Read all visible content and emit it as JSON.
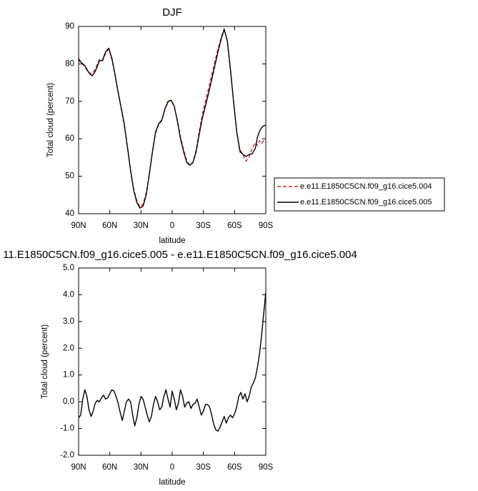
{
  "chart_data": [
    {
      "type": "line",
      "title": "DJF",
      "xlabel": "latitude",
      "ylabel": "Total cloud (percent)",
      "x_tick_labels": [
        "90N",
        "60N",
        "30N",
        "0",
        "30S",
        "60S",
        "90S"
      ],
      "x_tick_values": [
        90,
        60,
        30,
        0,
        -30,
        -60,
        -90
      ],
      "xlim": [
        90,
        -90
      ],
      "ylim": [
        40,
        90
      ],
      "y_ticks": [
        "40",
        "50",
        "60",
        "70",
        "80",
        "90"
      ],
      "legend_position": "right",
      "series": [
        {
          "name": "e.e11.E1850C5CN.f09_g16.cice5.004",
          "color": "#e31a1c",
          "style": "dashed",
          "x": [
            90,
            87,
            84,
            80,
            77,
            74,
            70,
            67,
            64,
            61,
            58,
            55,
            52,
            49,
            46,
            43,
            40,
            37,
            34,
            31,
            28,
            25,
            22,
            19,
            16,
            13,
            10,
            7,
            4,
            1,
            -2,
            -5,
            -8,
            -11,
            -14,
            -17,
            -20,
            -23,
            -26,
            -29,
            -32,
            -35,
            -38,
            -41,
            -44,
            -47,
            -50,
            -53,
            -56,
            -59,
            -62,
            -65,
            -68,
            -71,
            -74,
            -77,
            -80,
            -82,
            -84,
            -86,
            -88,
            -90
          ],
          "y": [
            81.5,
            80.2,
            79.2,
            77.6,
            77.4,
            78.6,
            81.2,
            80.8,
            82.8,
            84.0,
            81.2,
            77.0,
            72.5,
            68.0,
            63.5,
            57.5,
            51.5,
            46.5,
            43.5,
            41.8,
            42.6,
            45.5,
            50.5,
            56.5,
            61.5,
            63.8,
            64.8,
            67.8,
            69.8,
            70.4,
            68.5,
            65.0,
            60.5,
            57.0,
            54.2,
            52.9,
            53.8,
            57.0,
            62.0,
            66.5,
            70.0,
            73.5,
            77.0,
            80.5,
            84.0,
            87.0,
            89.4,
            86.0,
            78.5,
            70.0,
            62.0,
            56.5,
            55.8,
            54.0,
            55.2,
            57.5,
            59.0,
            58.2,
            59.5,
            58.8,
            59.5,
            59.0
          ]
        },
        {
          "name": "e.e11.E1850C5CN.f09_g16.cice5.005",
          "color": "#000000",
          "style": "solid",
          "x": [
            90,
            87,
            84,
            80,
            77,
            74,
            70,
            67,
            64,
            61,
            58,
            55,
            52,
            49,
            46,
            43,
            40,
            37,
            34,
            31,
            28,
            25,
            22,
            19,
            16,
            13,
            10,
            7,
            4,
            1,
            -2,
            -5,
            -8,
            -11,
            -14,
            -17,
            -20,
            -23,
            -26,
            -29,
            -32,
            -35,
            -38,
            -41,
            -44,
            -47,
            -50,
            -53,
            -56,
            -59,
            -62,
            -65,
            -68,
            -71,
            -74,
            -77,
            -80,
            -82,
            -84,
            -86,
            -88,
            -90
          ],
          "y": [
            81.0,
            80.3,
            79.5,
            77.6,
            76.8,
            78.0,
            80.8,
            81.0,
            83.2,
            84.2,
            81.5,
            77.2,
            72.5,
            68.2,
            63.8,
            57.8,
            51.5,
            46.2,
            43.0,
            41.5,
            42.0,
            45.0,
            50.5,
            56.5,
            61.8,
            64.0,
            65.0,
            68.0,
            70.0,
            70.3,
            68.7,
            64.7,
            60.0,
            56.5,
            53.7,
            52.9,
            53.7,
            56.5,
            61.2,
            65.5,
            68.8,
            72.2,
            75.8,
            79.5,
            83.2,
            86.5,
            89.2,
            86.2,
            78.5,
            70.0,
            62.0,
            57.0,
            55.8,
            55.3,
            55.8,
            56.0,
            57.5,
            60.5,
            62.0,
            63.0,
            63.5,
            63.6
          ]
        }
      ]
    },
    {
      "type": "line",
      "title": "11.E1850C5CN.f09_g16.cice5.005 - e.e11.E1850C5CN.f09_g16.cice5.004",
      "xlabel": "latitude",
      "ylabel": "Total cloud (percent)",
      "x_tick_labels": [
        "90N",
        "60N",
        "30N",
        "0",
        "30S",
        "60S",
        "90S"
      ],
      "x_tick_values": [
        90,
        60,
        30,
        0,
        -30,
        -60,
        -90
      ],
      "xlim": [
        90,
        -90
      ],
      "ylim": [
        -2.0,
        5.0
      ],
      "y_ticks": [
        "-2.0",
        "-1.0",
        "0.0",
        "1.0",
        "2.0",
        "3.0",
        "4.0",
        "5.0"
      ],
      "series": [
        {
          "color": "#000000",
          "style": "solid",
          "x": [
            90,
            88,
            86,
            84,
            82,
            80,
            78,
            76,
            74,
            72,
            70,
            68,
            66,
            64,
            62,
            60,
            58,
            56,
            54,
            52,
            50,
            48,
            46,
            44,
            42,
            40,
            38,
            36,
            34,
            32,
            30,
            28,
            26,
            24,
            22,
            20,
            18,
            16,
            14,
            12,
            10,
            8,
            6,
            4,
            2,
            0,
            -2,
            -4,
            -6,
            -8,
            -10,
            -12,
            -14,
            -16,
            -18,
            -20,
            -22,
            -24,
            -26,
            -28,
            -30,
            -32,
            -34,
            -36,
            -38,
            -40,
            -42,
            -44,
            -46,
            -48,
            -50,
            -52,
            -54,
            -56,
            -58,
            -60,
            -62,
            -64,
            -66,
            -68,
            -70,
            -72,
            -74,
            -76,
            -78,
            -80,
            -82,
            -84,
            -86,
            -88,
            -90
          ],
          "y": [
            -0.6,
            -0.5,
            0.1,
            0.45,
            0.2,
            -0.3,
            -0.55,
            -0.35,
            -0.05,
            0.05,
            0.0,
            0.15,
            0.25,
            0.1,
            0.15,
            0.3,
            0.45,
            0.4,
            0.2,
            -0.05,
            -0.4,
            -0.7,
            -0.35,
            0.0,
            0.1,
            0.0,
            -0.5,
            -0.9,
            -0.6,
            -0.1,
            0.2,
            0.1,
            -0.2,
            -0.5,
            -0.75,
            -0.55,
            -0.1,
            0.2,
            0.0,
            -0.3,
            -0.2,
            0.2,
            0.45,
            0.1,
            -0.2,
            0.4,
            0.1,
            -0.3,
            -0.05,
            0.45,
            0.2,
            -0.2,
            -0.05,
            0.0,
            -0.25,
            -0.1,
            -0.05,
            0.1,
            -0.2,
            -0.5,
            -0.35,
            -0.1,
            -0.1,
            -0.2,
            -0.5,
            -0.85,
            -1.05,
            -1.1,
            -0.95,
            -0.75,
            -0.55,
            -0.8,
            -0.6,
            -0.5,
            -0.6,
            -0.45,
            -0.2,
            0.2,
            0.35,
            0.1,
            0.3,
            0.0,
            0.2,
            0.55,
            0.7,
            0.9,
            1.3,
            1.8,
            2.5,
            3.3,
            4.1
          ]
        }
      ]
    }
  ]
}
